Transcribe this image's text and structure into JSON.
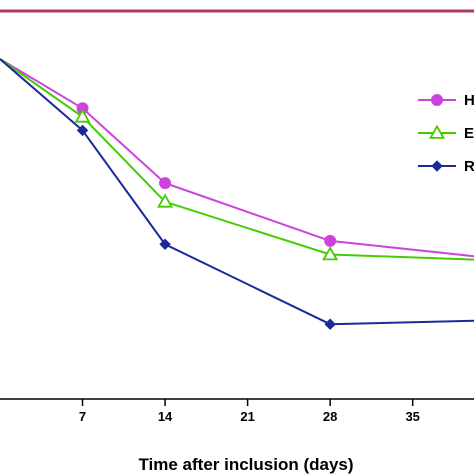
{
  "chart_data": {
    "type": "line",
    "xlabel": "Time after inclusion (days)",
    "ylabel": "",
    "xlim": [
      0,
      40.2
    ],
    "ylim": [
      0,
      100
    ],
    "xticks": [
      7,
      14,
      21,
      28,
      35
    ],
    "xtick_labels": [
      "7",
      "14",
      "21",
      "28",
      "35"
    ],
    "grid": false,
    "legend_placement": "right",
    "series": [
      {
        "name": "H",
        "color": "#cc44dd",
        "marker": "circle",
        "x": [
          0,
          7,
          14,
          28,
          40.2
        ],
        "y": [
          100,
          85.5,
          63.5,
          46.5,
          42
        ]
      },
      {
        "name": "E",
        "color": "#44cc00",
        "marker": "triangle",
        "x": [
          0,
          7,
          14,
          28,
          40.2
        ],
        "y": [
          100,
          83,
          58,
          42.5,
          41
        ]
      },
      {
        "name": "R",
        "color": "#1a2a99",
        "marker": "diamond",
        "x": [
          0,
          7,
          14,
          28,
          40.2
        ],
        "y": [
          100,
          79,
          45.5,
          22,
          23
        ]
      }
    ]
  }
}
